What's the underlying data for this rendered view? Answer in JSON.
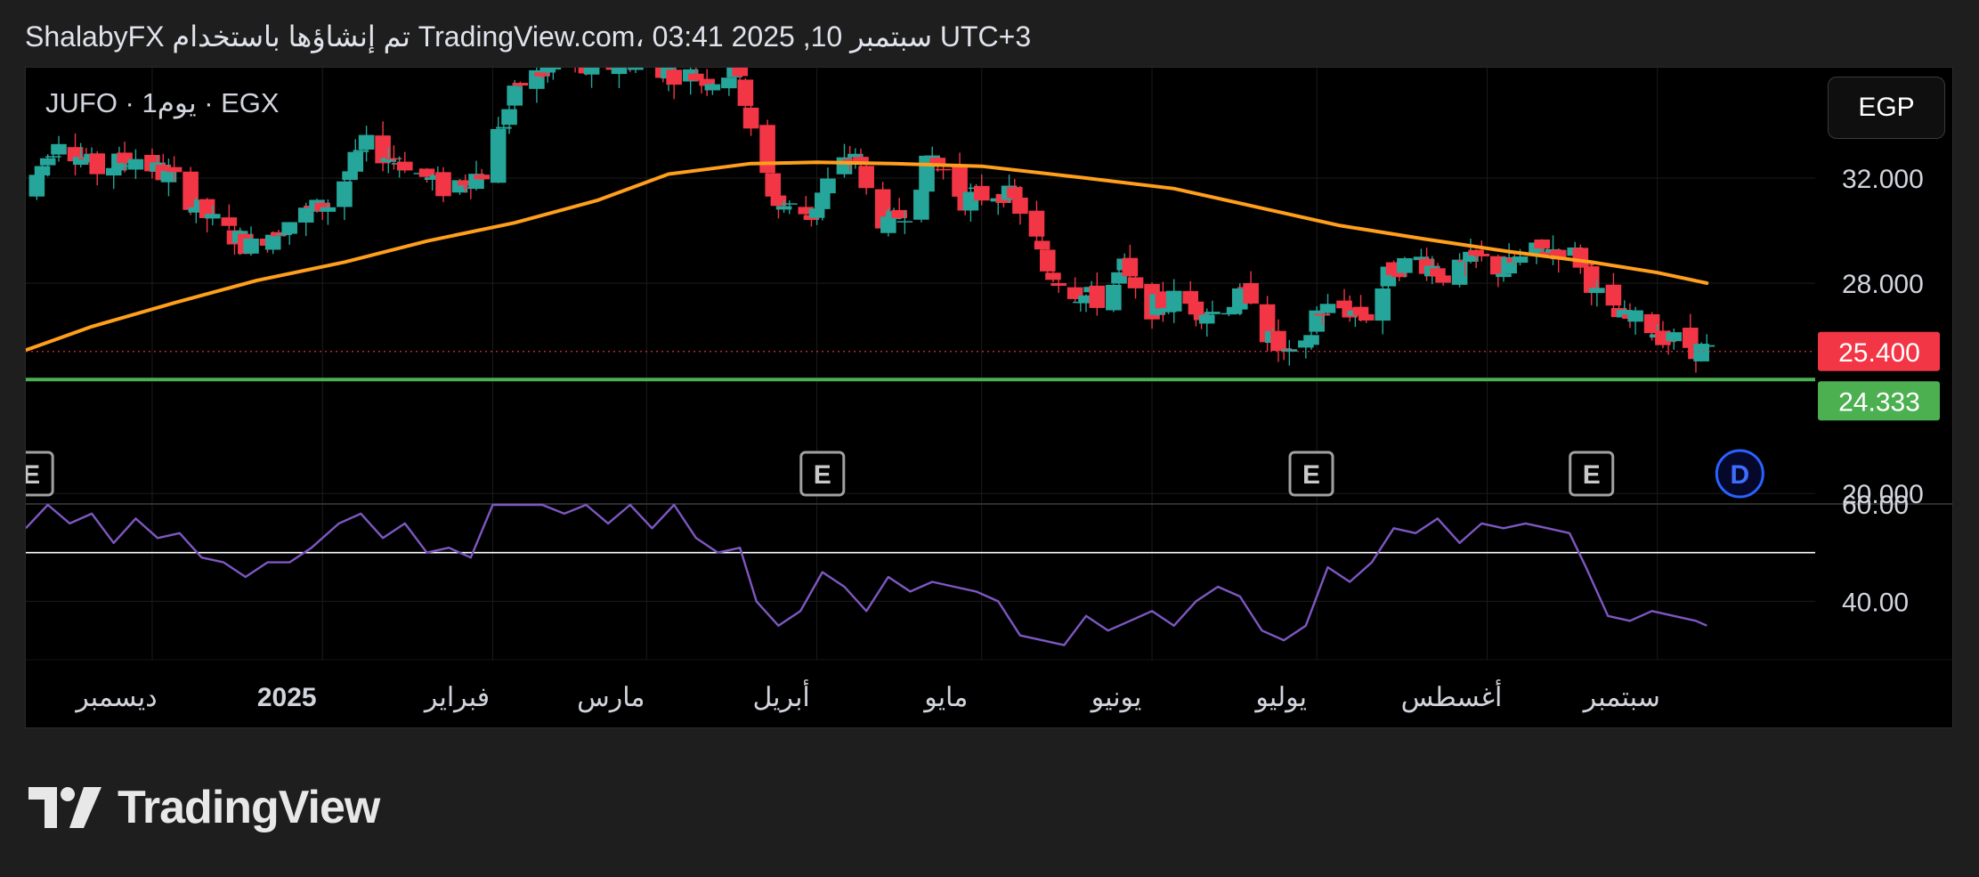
{
  "header": {
    "title": "ShalabyFX تم إنشاؤها باستخدام TradingView.com، 03:41 2025 ,10 سبتمبر UTC+3"
  },
  "symbol": {
    "label": "JUFO · 1يوم · EGX"
  },
  "currency": {
    "label": "EGP"
  },
  "brand": {
    "name": "TradingView"
  },
  "colors": {
    "up": "#26a69a",
    "down": "#f23645",
    "ma": "#ff9f1c",
    "support": "#4caf50",
    "rsi": "#7e57c2",
    "rsi_ref": "#ffffff",
    "grid": "#1c1c1c",
    "axis_text": "#d1d4dc"
  },
  "chart_data": {
    "type": "candlestick",
    "time_axis": {
      "range": [
        "2024-11-08",
        "2025-10-25"
      ],
      "ticks": [
        {
          "date": "2024-12-01",
          "label": "ديسمبر",
          "bold": false
        },
        {
          "date": "2025-01-01",
          "label": "2025",
          "bold": true
        },
        {
          "date": "2025-02-01",
          "label": "فبراير",
          "bold": false
        },
        {
          "date": "2025-03-01",
          "label": "مارس",
          "bold": false
        },
        {
          "date": "2025-04-01",
          "label": "أبريل",
          "bold": false
        },
        {
          "date": "2025-05-01",
          "label": "مايو",
          "bold": false
        },
        {
          "date": "2025-06-01",
          "label": "يونيو",
          "bold": false
        },
        {
          "date": "2025-07-01",
          "label": "يوليو",
          "bold": false
        },
        {
          "date": "2025-08-01",
          "label": "أغسطس",
          "bold": false
        },
        {
          "date": "2025-09-01",
          "label": "سبتمبر",
          "bold": false
        }
      ]
    },
    "price_pane": {
      "y_range": [
        19.6,
        36.2
      ],
      "ticks": [
        {
          "value": 32,
          "label": "32.000"
        },
        {
          "value": 28,
          "label": "28.000"
        },
        {
          "value": 20,
          "label": "20.000"
        }
      ],
      "last_price": {
        "value": 25.4,
        "label": "25.400"
      },
      "support_line": {
        "value": 24.333,
        "label": "24.333"
      },
      "close_path": [
        [
          "2024-11-08",
          31.3
        ],
        [
          "2024-11-14",
          33.6
        ],
        [
          "2024-11-21",
          32.3
        ],
        [
          "2024-11-28",
          32.8
        ],
        [
          "2024-12-05",
          31.9
        ],
        [
          "2024-12-12",
          30.3
        ],
        [
          "2024-12-19",
          29.4
        ],
        [
          "2024-12-26",
          30.4
        ],
        [
          "2025-01-02",
          31.0
        ],
        [
          "2025-01-09",
          33.2
        ],
        [
          "2025-01-16",
          32.6
        ],
        [
          "2025-01-23",
          31.6
        ],
        [
          "2025-01-30",
          32.2
        ],
        [
          "2025-02-06",
          35.6
        ],
        [
          "2025-02-13",
          36.3
        ],
        [
          "2025-02-20",
          36.0
        ],
        [
          "2025-02-27",
          36.6
        ],
        [
          "2025-03-06",
          36.0
        ],
        [
          "2025-03-13",
          35.8
        ],
        [
          "2025-03-18",
          36.2
        ],
        [
          "2025-03-20",
          33.6
        ],
        [
          "2025-03-25",
          31.0
        ],
        [
          "2025-03-31",
          30.6
        ],
        [
          "2025-04-03",
          31.8
        ],
        [
          "2025-04-08",
          33.0
        ],
        [
          "2025-04-10",
          31.5
        ],
        [
          "2025-04-14",
          30.1
        ],
        [
          "2025-04-17",
          30.8
        ],
        [
          "2025-04-22",
          32.8
        ],
        [
          "2025-04-28",
          31.2
        ],
        [
          "2025-05-05",
          31.5
        ],
        [
          "2025-05-09",
          30.6
        ],
        [
          "2025-05-13",
          28.5
        ],
        [
          "2025-05-19",
          27.6
        ],
        [
          "2025-05-23",
          27.3
        ],
        [
          "2025-05-27",
          28.6
        ],
        [
          "2025-05-30",
          26.9
        ],
        [
          "2025-06-05",
          27.4
        ],
        [
          "2025-06-12",
          26.9
        ],
        [
          "2025-06-19",
          27.6
        ],
        [
          "2025-06-22",
          26.1
        ],
        [
          "2025-06-24",
          25.5
        ],
        [
          "2025-06-28",
          24.7
        ],
        [
          "2025-07-01",
          26.9
        ],
        [
          "2025-07-05",
          27.1
        ],
        [
          "2025-07-10",
          26.8
        ],
        [
          "2025-07-15",
          28.6
        ],
        [
          "2025-07-20",
          28.9
        ],
        [
          "2025-07-25",
          28.2
        ],
        [
          "2025-07-30",
          28.9
        ],
        [
          "2025-08-04",
          28.5
        ],
        [
          "2025-08-08",
          29.0
        ],
        [
          "2025-08-12",
          29.3
        ],
        [
          "2025-08-16",
          29.3
        ],
        [
          "2025-08-19",
          28.6
        ],
        [
          "2025-08-22",
          27.0
        ],
        [
          "2025-08-26",
          26.6
        ],
        [
          "2025-08-30",
          26.5
        ],
        [
          "2025-09-03",
          25.9
        ],
        [
          "2025-09-07",
          25.6
        ],
        [
          "2025-09-10",
          25.4
        ]
      ],
      "moving_average": [
        [
          "2024-11-08",
          25.45
        ],
        [
          "2024-11-20",
          26.35
        ],
        [
          "2024-12-05",
          27.25
        ],
        [
          "2024-12-20",
          28.1
        ],
        [
          "2025-01-05",
          28.8
        ],
        [
          "2025-01-20",
          29.6
        ],
        [
          "2025-02-05",
          30.3
        ],
        [
          "2025-02-20",
          31.15
        ],
        [
          "2025-03-05",
          32.15
        ],
        [
          "2025-03-20",
          32.55
        ],
        [
          "2025-04-01",
          32.6
        ],
        [
          "2025-04-15",
          32.55
        ],
        [
          "2025-05-01",
          32.45
        ],
        [
          "2025-05-20",
          32.0
        ],
        [
          "2025-06-05",
          31.6
        ],
        [
          "2025-06-20",
          30.9
        ],
        [
          "2025-07-05",
          30.2
        ],
        [
          "2025-07-20",
          29.7
        ],
        [
          "2025-08-05",
          29.2
        ],
        [
          "2025-08-20",
          28.8
        ],
        [
          "2025-09-01",
          28.4
        ],
        [
          "2025-09-10",
          28.0
        ]
      ],
      "event_markers": [
        {
          "date": "2024-11-09",
          "label": "E",
          "type": "earnings"
        },
        {
          "date": "2025-04-02",
          "label": "E",
          "type": "earnings"
        },
        {
          "date": "2025-06-30",
          "label": "E",
          "type": "earnings"
        },
        {
          "date": "2025-08-20",
          "label": "E",
          "type": "earnings"
        },
        {
          "date": "2025-09-16",
          "label": "D",
          "type": "dividend"
        }
      ]
    },
    "rsi_pane": {
      "y_range": [
        28,
        60
      ],
      "ticks": [
        {
          "value": 60,
          "label": "60.00"
        },
        {
          "value": 40,
          "label": "40.00"
        }
      ],
      "reference_line": 50,
      "series": [
        [
          "2024-11-08",
          55
        ],
        [
          "2024-11-12",
          60
        ],
        [
          "2024-11-16",
          56
        ],
        [
          "2024-11-20",
          58
        ],
        [
          "2024-11-24",
          52
        ],
        [
          "2024-11-28",
          57
        ],
        [
          "2024-12-02",
          53
        ],
        [
          "2024-12-06",
          54
        ],
        [
          "2024-12-10",
          49
        ],
        [
          "2024-12-14",
          48
        ],
        [
          "2024-12-18",
          45
        ],
        [
          "2024-12-22",
          48
        ],
        [
          "2024-12-26",
          48
        ],
        [
          "2024-12-30",
          51
        ],
        [
          "2025-01-04",
          56
        ],
        [
          "2025-01-08",
          58
        ],
        [
          "2025-01-12",
          53
        ],
        [
          "2025-01-16",
          56
        ],
        [
          "2025-01-20",
          50
        ],
        [
          "2025-01-24",
          51
        ],
        [
          "2025-01-28",
          49
        ],
        [
          "2025-02-01",
          60
        ],
        [
          "2025-02-05",
          62
        ],
        [
          "2025-02-10",
          61
        ],
        [
          "2025-02-14",
          58
        ],
        [
          "2025-02-18",
          62
        ],
        [
          "2025-02-22",
          56
        ],
        [
          "2025-02-26",
          62
        ],
        [
          "2025-03-02",
          55
        ],
        [
          "2025-03-06",
          60
        ],
        [
          "2025-03-10",
          53
        ],
        [
          "2025-03-14",
          50
        ],
        [
          "2025-03-18",
          51
        ],
        [
          "2025-03-21",
          40
        ],
        [
          "2025-03-25",
          35
        ],
        [
          "2025-03-29",
          38
        ],
        [
          "2025-04-02",
          46
        ],
        [
          "2025-04-06",
          43
        ],
        [
          "2025-04-10",
          38
        ],
        [
          "2025-04-14",
          45
        ],
        [
          "2025-04-18",
          42
        ],
        [
          "2025-04-22",
          44
        ],
        [
          "2025-04-26",
          43
        ],
        [
          "2025-04-30",
          42
        ],
        [
          "2025-05-04",
          40
        ],
        [
          "2025-05-08",
          33
        ],
        [
          "2025-05-12",
          32
        ],
        [
          "2025-05-16",
          31
        ],
        [
          "2025-05-20",
          37
        ],
        [
          "2025-05-24",
          34
        ],
        [
          "2025-05-28",
          36
        ],
        [
          "2025-06-01",
          38
        ],
        [
          "2025-06-05",
          35
        ],
        [
          "2025-06-09",
          40
        ],
        [
          "2025-06-13",
          43
        ],
        [
          "2025-06-17",
          41
        ],
        [
          "2025-06-21",
          34
        ],
        [
          "2025-06-25",
          32
        ],
        [
          "2025-06-29",
          35
        ],
        [
          "2025-07-03",
          47
        ],
        [
          "2025-07-07",
          44
        ],
        [
          "2025-07-11",
          48
        ],
        [
          "2025-07-15",
          55
        ],
        [
          "2025-07-19",
          54
        ],
        [
          "2025-07-23",
          57
        ],
        [
          "2025-07-27",
          52
        ],
        [
          "2025-07-31",
          56
        ],
        [
          "2025-08-04",
          55
        ],
        [
          "2025-08-08",
          56
        ],
        [
          "2025-08-12",
          55
        ],
        [
          "2025-08-16",
          54
        ],
        [
          "2025-08-19",
          47
        ],
        [
          "2025-08-23",
          37
        ],
        [
          "2025-08-27",
          36
        ],
        [
          "2025-08-31",
          38
        ],
        [
          "2025-09-04",
          37
        ],
        [
          "2025-09-08",
          36
        ],
        [
          "2025-09-10",
          35
        ]
      ]
    }
  }
}
